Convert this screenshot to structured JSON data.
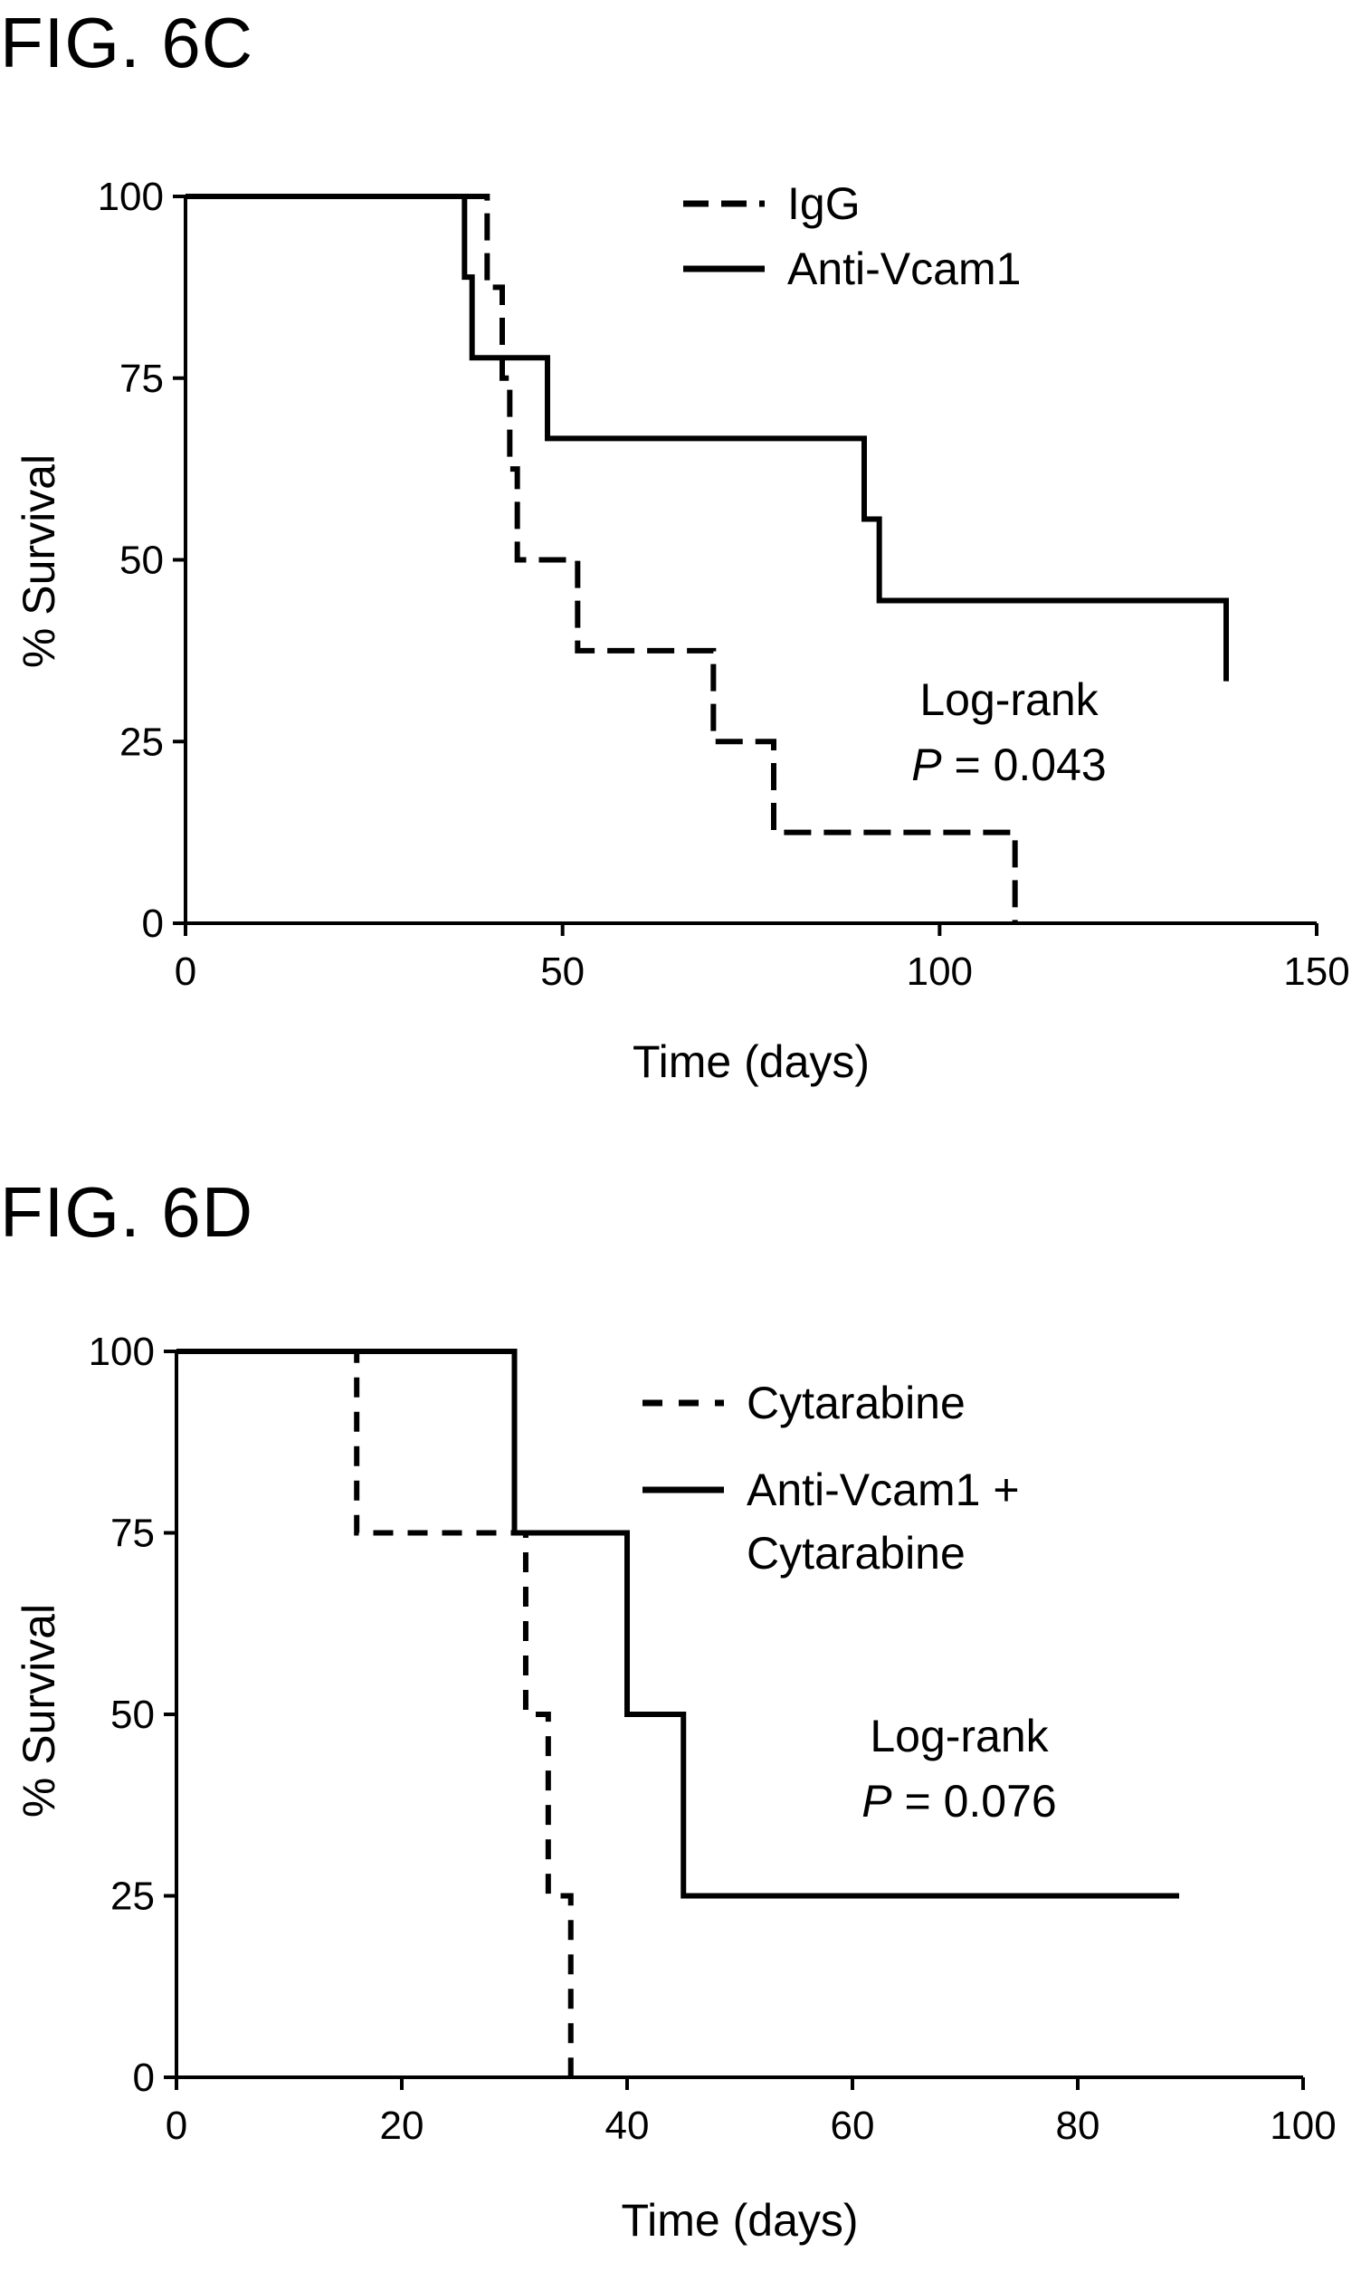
{
  "figures": [
    {
      "title": "FIG. 6C"
    },
    {
      "title": "FIG. 6D"
    }
  ],
  "chart_data": [
    {
      "type": "line",
      "subtype": "kaplan-meier-survival",
      "title": "FIG. 6C",
      "xlabel": "Time (days)",
      "ylabel": "% Survival",
      "xlim": [
        0,
        150
      ],
      "ylim": [
        0,
        100
      ],
      "xticks": [
        0,
        50,
        100,
        150
      ],
      "yticks": [
        0,
        25,
        50,
        75,
        100
      ],
      "grid": false,
      "legend_position": "top-right",
      "annotation": {
        "line1": "Log-rank",
        "p_symbol": "P",
        "p_value": "= 0.043"
      },
      "series": [
        {
          "name": "IgG",
          "style": "dashed",
          "color": "#000000",
          "x": [
            0,
            40,
            42,
            43,
            44,
            52,
            70,
            78,
            110,
            110
          ],
          "y": [
            100,
            87.5,
            75,
            62.5,
            50,
            37.5,
            25,
            12.5,
            12.5,
            0
          ]
        },
        {
          "name": "Anti-Vcam1",
          "style": "solid",
          "color": "#000000",
          "x": [
            0,
            37,
            38,
            40,
            48,
            90,
            92,
            138,
            138
          ],
          "y": [
            100,
            88.9,
            77.8,
            77.8,
            66.7,
            55.6,
            44.4,
            44.4,
            33.3
          ]
        }
      ]
    },
    {
      "type": "line",
      "subtype": "kaplan-meier-survival",
      "title": "FIG. 6D",
      "xlabel": "Time (days)",
      "ylabel": "% Survival",
      "xlim": [
        0,
        100
      ],
      "ylim": [
        0,
        100
      ],
      "xticks": [
        0,
        20,
        40,
        60,
        80,
        100
      ],
      "yticks": [
        0,
        25,
        50,
        75,
        100
      ],
      "grid": false,
      "legend_position": "top-right",
      "annotation": {
        "line1": "Log-rank",
        "p_symbol": "P",
        "p_value": "= 0.076"
      },
      "series": [
        {
          "name": "Cytarabine",
          "style": "dotted-dash",
          "color": "#000000",
          "x": [
            0,
            16,
            31,
            33,
            35,
            35
          ],
          "y": [
            100,
            75,
            50,
            25,
            25,
            0
          ]
        },
        {
          "name": "Anti-Vcam1 + Cytarabine",
          "name_lines": [
            "Anti-Vcam1 +",
            "Cytarabine"
          ],
          "style": "solid",
          "color": "#000000",
          "x": [
            0,
            30,
            40,
            45,
            89
          ],
          "y": [
            100,
            75,
            50,
            25,
            25
          ]
        }
      ]
    }
  ]
}
